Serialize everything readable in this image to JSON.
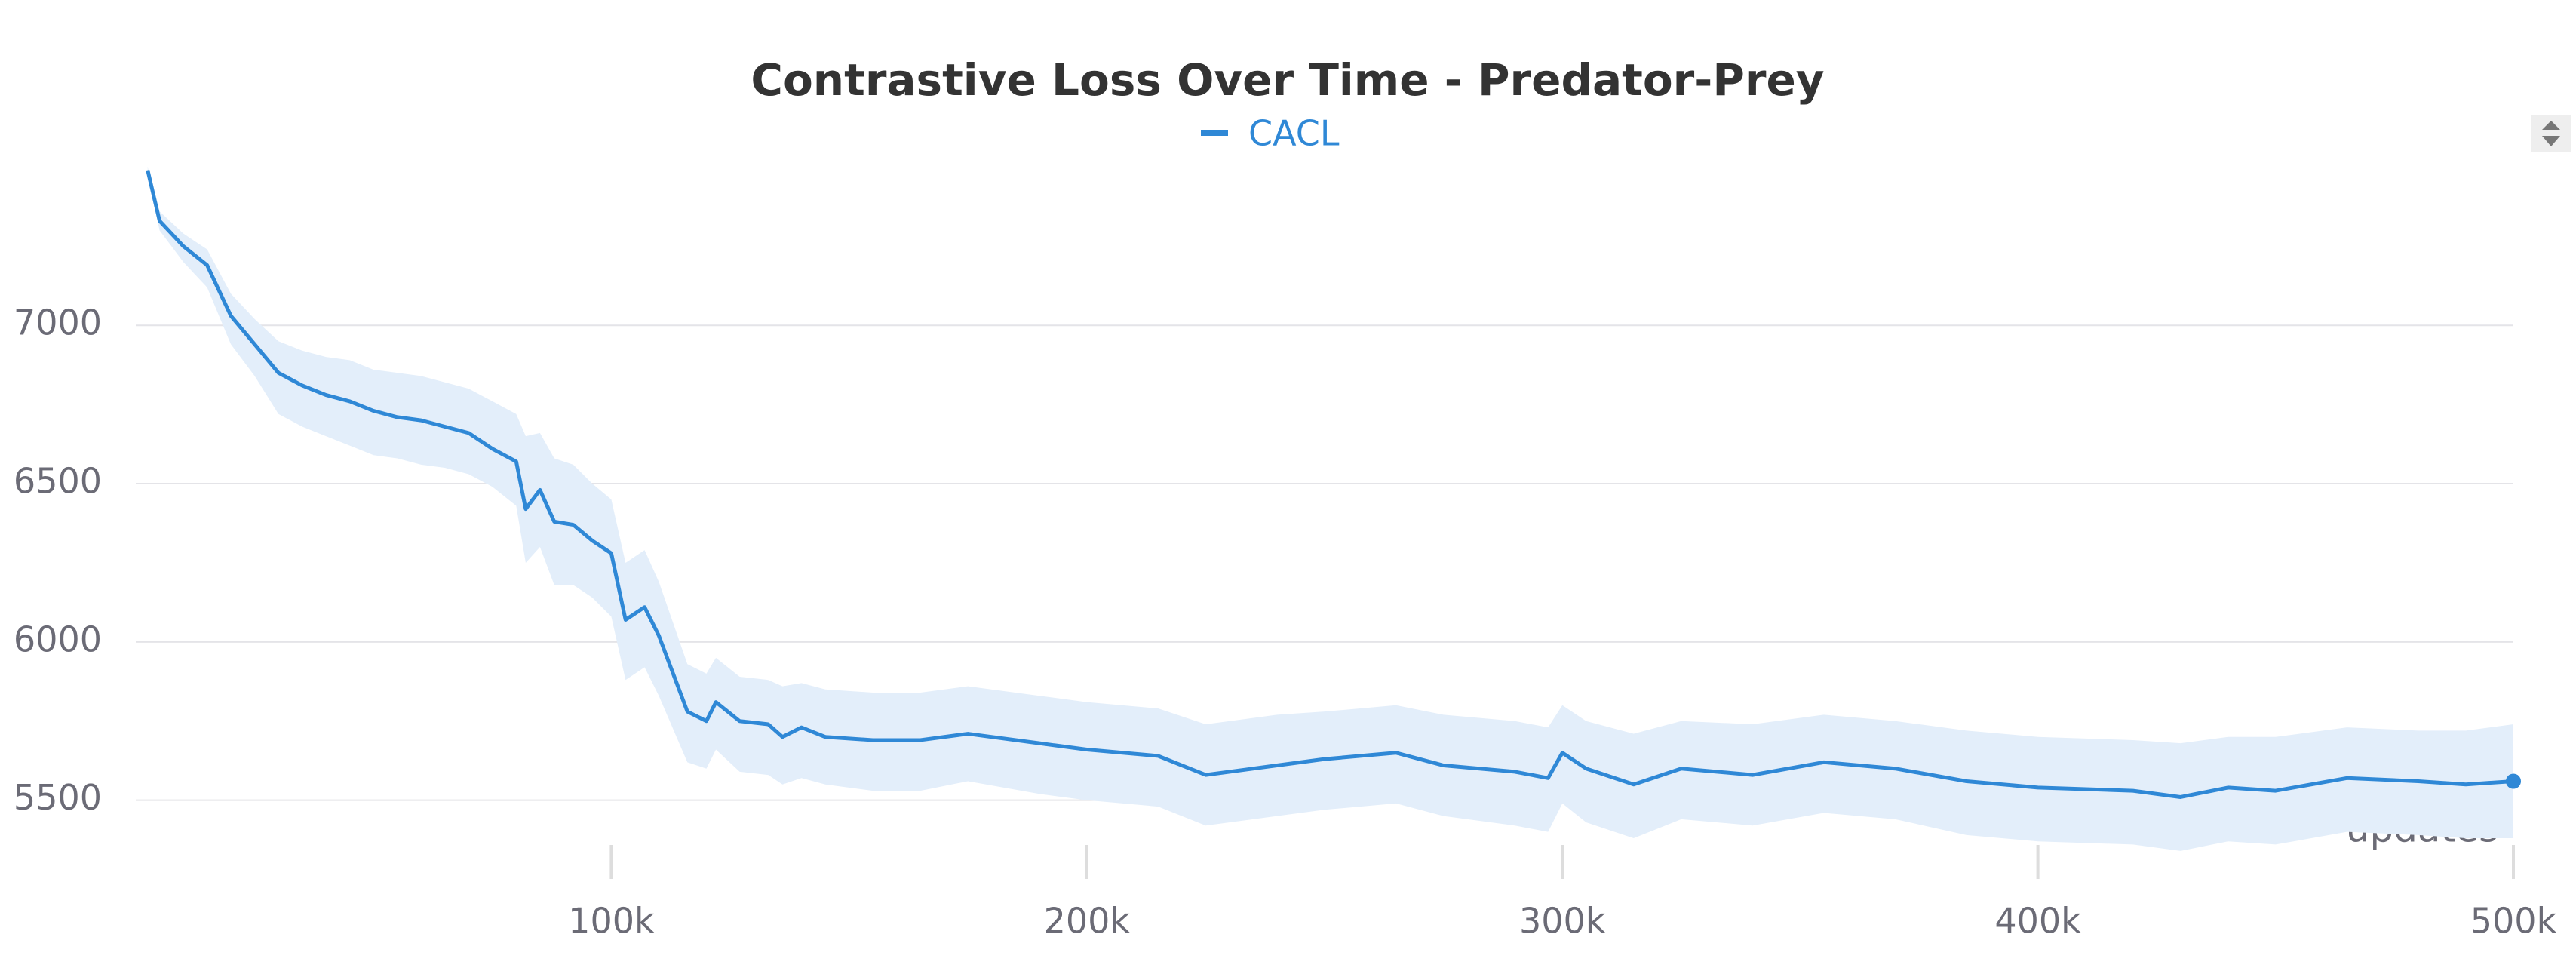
{
  "chart_data": {
    "type": "line",
    "title": "Contrastive Loss Over Time - Predator-Prey",
    "xlabel": "updates",
    "x": [
      2500,
      5000,
      10000,
      15000,
      20000,
      25000,
      30000,
      35000,
      40000,
      45000,
      50000,
      55000,
      60000,
      65000,
      70000,
      75000,
      80000,
      82000,
      85000,
      88000,
      92000,
      96000,
      100000,
      103000,
      107000,
      110000,
      116000,
      120000,
      122000,
      127000,
      133000,
      136000,
      140000,
      145000,
      155000,
      165000,
      175000,
      190000,
      200000,
      215000,
      225000,
      240000,
      250000,
      265000,
      275000,
      290000,
      297000,
      300000,
      305000,
      315000,
      325000,
      340000,
      355000,
      370000,
      385000,
      400000,
      420000,
      430000,
      440000,
      450000,
      465000,
      480000,
      490000,
      500000
    ],
    "series": [
      {
        "name": "CACL",
        "color": "#2f88d6",
        "band_color": "#e3eefa",
        "values": [
          7490,
          7330,
          7250,
          7190,
          7030,
          6940,
          6850,
          6810,
          6780,
          6760,
          6730,
          6710,
          6700,
          6680,
          6660,
          6610,
          6570,
          6420,
          6480,
          6380,
          6370,
          6320,
          6280,
          6070,
          6110,
          6020,
          5780,
          5750,
          5810,
          5750,
          5740,
          5700,
          5730,
          5700,
          5690,
          5690,
          5710,
          5680,
          5660,
          5640,
          5580,
          5610,
          5630,
          5650,
          5610,
          5590,
          5570,
          5650,
          5600,
          5550,
          5600,
          5580,
          5620,
          5600,
          5560,
          5540,
          5530,
          5510,
          5540,
          5530,
          5570,
          5560,
          5550,
          5560
        ],
        "upper": [
          7500,
          7360,
          7290,
          7240,
          7100,
          7020,
          6950,
          6920,
          6900,
          6890,
          6860,
          6850,
          6840,
          6820,
          6800,
          6760,
          6720,
          6650,
          6660,
          6580,
          6560,
          6500,
          6450,
          6250,
          6290,
          6190,
          5930,
          5900,
          5950,
          5890,
          5880,
          5860,
          5870,
          5850,
          5840,
          5840,
          5860,
          5830,
          5810,
          5790,
          5740,
          5770,
          5780,
          5800,
          5770,
          5750,
          5730,
          5800,
          5750,
          5710,
          5750,
          5740,
          5770,
          5750,
          5720,
          5700,
          5690,
          5680,
          5700,
          5700,
          5730,
          5720,
          5720,
          5740
        ],
        "lower": [
          7480,
          7300,
          7200,
          7120,
          6940,
          6840,
          6720,
          6680,
          6650,
          6620,
          6590,
          6580,
          6560,
          6550,
          6530,
          6490,
          6430,
          6250,
          6300,
          6180,
          6180,
          6140,
          6080,
          5880,
          5920,
          5830,
          5620,
          5600,
          5660,
          5590,
          5580,
          5550,
          5570,
          5550,
          5530,
          5530,
          5560,
          5520,
          5500,
          5480,
          5420,
          5450,
          5470,
          5490,
          5450,
          5420,
          5400,
          5490,
          5430,
          5380,
          5440,
          5420,
          5460,
          5440,
          5390,
          5370,
          5360,
          5340,
          5370,
          5360,
          5400,
          5390,
          5380,
          5380
        ]
      }
    ],
    "xlim": [
      0,
      500000
    ],
    "xticks": [
      {
        "value": 100000,
        "label": "100k"
      },
      {
        "value": 200000,
        "label": "200k"
      },
      {
        "value": 300000,
        "label": "300k"
      },
      {
        "value": 400000,
        "label": "400k"
      },
      {
        "value": 500000,
        "label": "500k"
      }
    ],
    "ylim": [
      5280,
      7520
    ],
    "yticks": [
      5500,
      6000,
      6500,
      7000
    ],
    "grid": true,
    "legend": "top"
  }
}
